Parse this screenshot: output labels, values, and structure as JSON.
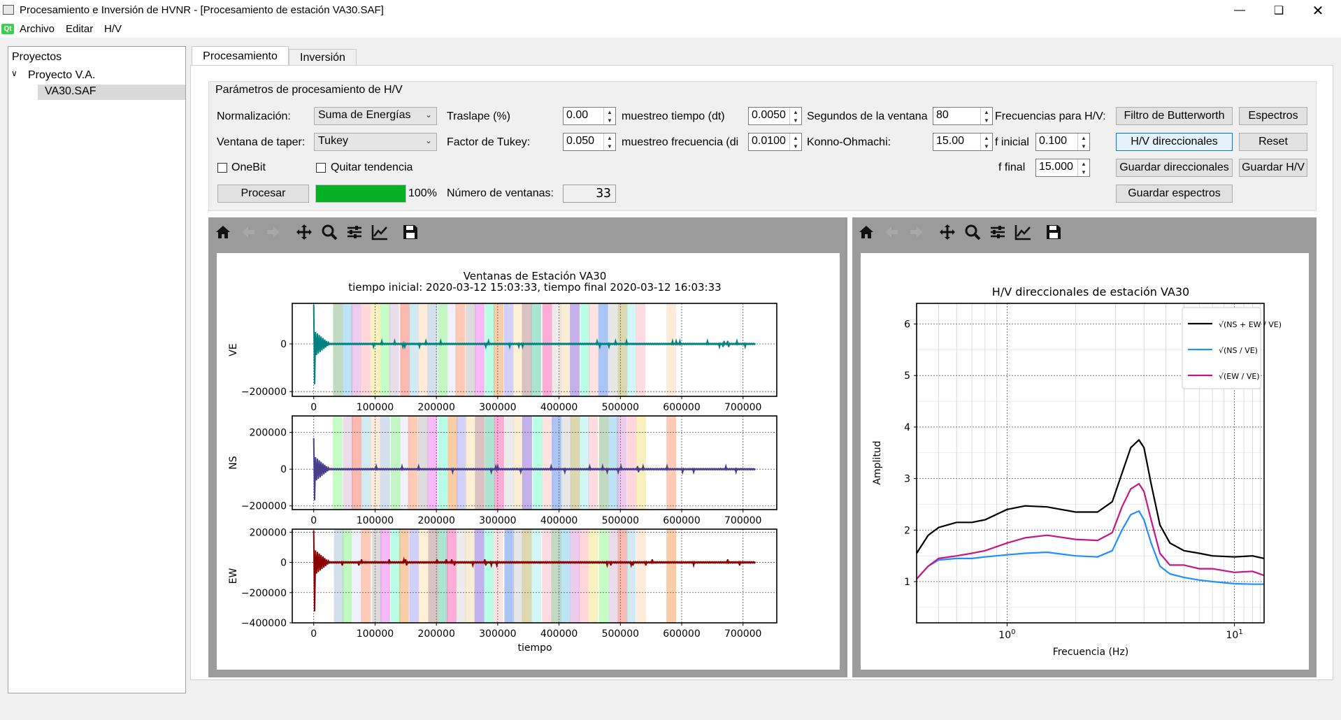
{
  "window": {
    "title": "Procesamiento e Inversión de HVNR - [Procesamiento de estación VA30.SAF]"
  },
  "menu": {
    "logo": "Qt",
    "items": [
      "Archivo",
      "Editar",
      "H/V"
    ]
  },
  "tree": {
    "header": "Proyectos",
    "project": "Proyecto V.A.",
    "file": "VA30.SAF"
  },
  "tabs": {
    "active": "Procesamiento",
    "other": "Inversión"
  },
  "params": {
    "group_title": "Parámetros de procesamiento de H/V",
    "normalizacion_label": "Normalización:",
    "normalizacion_value": "Suma de Energías",
    "ventana_taper_label": "Ventana de taper:",
    "ventana_taper_value": "Tukey",
    "onebit_label": "OneBit",
    "quitar_tendencia_label": "Quitar tendencia",
    "procesar_label": "Procesar",
    "progress_text": "100%",
    "progress_value": 1.0,
    "traslape_label": "Traslape (%)",
    "traslape_value": "0.00",
    "factor_tukey_label": "Factor de Tukey:",
    "factor_tukey_value": "0.050",
    "num_ventanas_label": "Número de ventanas:",
    "num_ventanas_value": "33",
    "muestreo_tiempo_label": "muestreo tiempo (dt)",
    "muestreo_tiempo_value": "0.0050",
    "muestreo_frecuencia_label": "muestreo frecuencia (di",
    "muestreo_frecuencia_value": "0.0100",
    "segundos_label": "Segundos de la ventana",
    "segundos_value": "80",
    "konno_label": "Konno-Ohmachi:",
    "konno_value": "15.00",
    "frecuencias_label": "Frecuencias para H/V:",
    "f_inicial_label": "f inicial",
    "f_inicial_value": "0.100",
    "f_final_label": "f final",
    "f_final_value": "15.000",
    "btn_butterworth": "Filtro de Butterworth",
    "btn_espectros": "Espectros",
    "btn_hv_direccionales": "H/V direccionales",
    "btn_reset": "Reset",
    "btn_guardar_direccionales": "Guardar direccionales",
    "btn_guardar_hv": "Guardar H/V",
    "btn_guardar_espectros": "Guardar espectros"
  },
  "colors": {
    "ve": "#008080",
    "ns": "#483d8b",
    "ew": "#8b0000",
    "progress": "#06b025",
    "hv_ns_ew": "#000000",
    "hv_ns": "#1e90ff",
    "hv_ew": "#c71585"
  },
  "toolbar_icons": [
    "home-icon",
    "back-icon",
    "forward-icon",
    "pan-icon",
    "zoom-icon",
    "configure-icon",
    "edit-axis-icon",
    "save-icon"
  ],
  "chart_data": [
    {
      "type": "line",
      "title": "Ventanas de Estación VA30",
      "subtitle": "tiempo inicial: 2020-03-12 15:03:33,  tiempo final 2020-03-12 16:03:33",
      "xlabel": "tiempo",
      "xlim": [
        -35000,
        755000
      ],
      "xticks": [
        0,
        100000,
        200000,
        300000,
        400000,
        500000,
        600000,
        700000
      ],
      "xtick_labels": [
        "0",
        "100000",
        "200000",
        "300000",
        "400000",
        "500000",
        "600000",
        "700000"
      ],
      "panels": [
        {
          "name": "VE",
          "ylabel": "VE",
          "ylim": [
            -220000,
            170000
          ],
          "yticks": [
            0,
            -200000
          ],
          "ytick_labels": [
            "0",
            "−200000"
          ]
        },
        {
          "name": "NS",
          "ylabel": "NS",
          "ylim": [
            -220000,
            290000
          ],
          "yticks": [
            200000,
            0,
            -200000
          ],
          "ytick_labels": [
            "200000",
            "0",
            "−200000"
          ]
        },
        {
          "name": "EW",
          "ylabel": "EW",
          "ylim": [
            -400000,
            220000
          ],
          "yticks": [
            200000,
            0,
            -200000,
            -400000
          ],
          "ytick_labels": [
            "200000",
            "0",
            "−200000",
            "−400000"
          ]
        }
      ],
      "windows_count": 33,
      "window_length_samples": 16000,
      "signal_length_samples": 720000,
      "grid": true
    },
    {
      "type": "line",
      "title": "H/V direccionales de estación VA30",
      "xlabel": "Frecuencia (Hz)",
      "ylabel": "Amplitud",
      "xscale": "log",
      "xlim": [
        0.4,
        13.5
      ],
      "ylim": [
        0.2,
        6.4
      ],
      "xtick_labels": [
        "10^0",
        "10^1"
      ],
      "yticks": [
        1,
        2,
        3,
        4,
        5,
        6
      ],
      "ytick_labels": [
        "1",
        "2",
        "3",
        "4",
        "5",
        "6"
      ],
      "legend": {
        "position": "top-right",
        "entries": [
          "√(NS + EW / VE)",
          "√(NS / VE)",
          "√(EW / VE)"
        ]
      },
      "grid": true,
      "x": [
        0.4,
        0.45,
        0.5,
        0.6,
        0.7,
        0.8,
        1.0,
        1.2,
        1.5,
        2.0,
        2.5,
        2.9,
        3.2,
        3.5,
        3.8,
        4.0,
        4.3,
        4.7,
        5.2,
        6.0,
        7.0,
        8.0,
        10.0,
        12.0,
        13.5
      ],
      "series": [
        {
          "name": "√(NS + EW / VE)",
          "values": [
            1.55,
            1.9,
            2.05,
            2.15,
            2.15,
            2.2,
            2.4,
            2.47,
            2.45,
            2.35,
            2.35,
            2.55,
            3.1,
            3.6,
            3.75,
            3.6,
            2.9,
            2.1,
            1.75,
            1.6,
            1.55,
            1.5,
            1.48,
            1.5,
            1.45
          ]
        },
        {
          "name": "√(NS / VE)",
          "values": [
            1.05,
            1.3,
            1.42,
            1.45,
            1.45,
            1.48,
            1.52,
            1.55,
            1.57,
            1.5,
            1.48,
            1.6,
            2.0,
            2.3,
            2.37,
            2.2,
            1.75,
            1.3,
            1.15,
            1.08,
            1.03,
            1.0,
            0.96,
            0.95,
            0.95
          ]
        },
        {
          "name": "√(EW / VE)",
          "values": [
            1.05,
            1.3,
            1.45,
            1.5,
            1.55,
            1.6,
            1.75,
            1.85,
            1.9,
            1.82,
            1.8,
            1.95,
            2.45,
            2.8,
            2.9,
            2.75,
            2.2,
            1.55,
            1.32,
            1.32,
            1.25,
            1.25,
            1.18,
            1.2,
            1.12
          ]
        }
      ]
    }
  ]
}
